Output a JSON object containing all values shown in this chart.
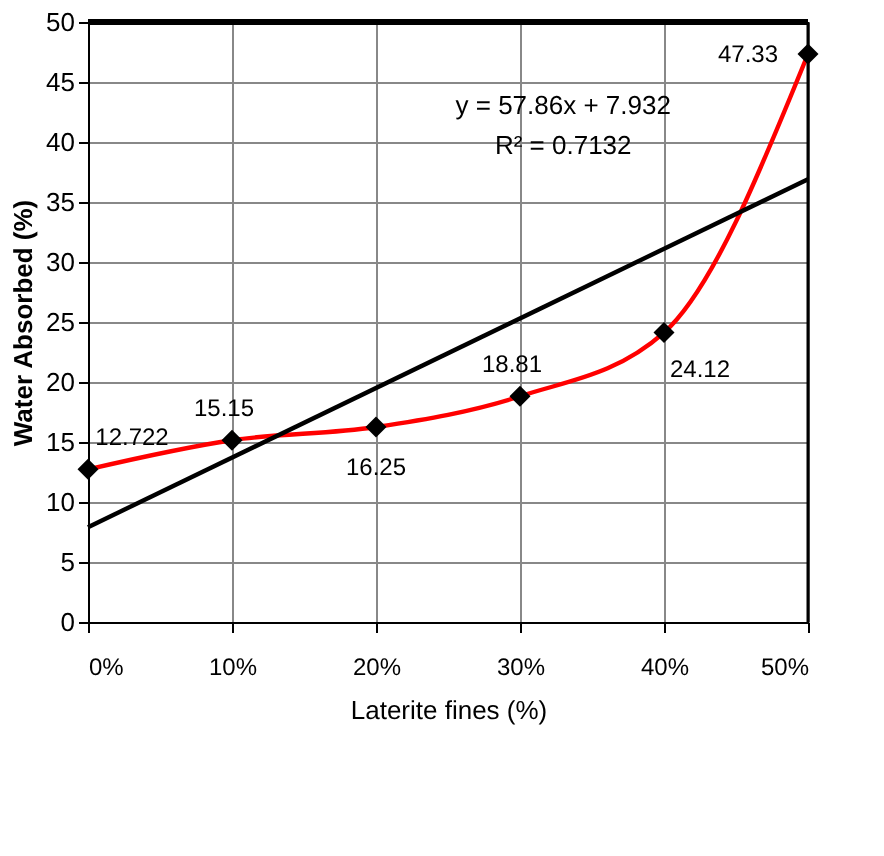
{
  "chart_data": {
    "type": "line",
    "xlabel": "Laterite fines (%)",
    "ylabel": "Water Absorbed (%)",
    "x": [
      0,
      0.1,
      0.2,
      0.3,
      0.4,
      0.5
    ],
    "series": [
      {
        "color": "#ff0000",
        "marker": "diamond",
        "values": [
          12.722,
          15.15,
          16.25,
          18.81,
          24.12,
          47.33
        ],
        "value_labels": [
          "12.722",
          "15.15",
          "16.25",
          "18.81",
          "24.12",
          "47.33"
        ]
      },
      {
        "color": "#000000",
        "marker": "none",
        "x": [
          0,
          0.5
        ],
        "values": [
          7.9,
          36.9
        ]
      }
    ],
    "annotations": [
      "y = 57.86x + 7.932",
      "R² = 0.7132"
    ],
    "xlim": [
      0,
      0.5
    ],
    "xticks": [
      {
        "value": 0,
        "label": "0%"
      },
      {
        "value": 0.1,
        "label": "10%"
      },
      {
        "value": 0.2,
        "label": "20%"
      },
      {
        "value": 0.3,
        "label": "30%"
      },
      {
        "value": 0.4,
        "label": "40%"
      },
      {
        "value": 0.5,
        "label": "50%"
      }
    ],
    "ylim": [
      0,
      50
    ],
    "yticks": [
      0,
      5,
      10,
      15,
      20,
      25,
      30,
      35,
      40,
      45,
      50
    ],
    "grid": true
  }
}
